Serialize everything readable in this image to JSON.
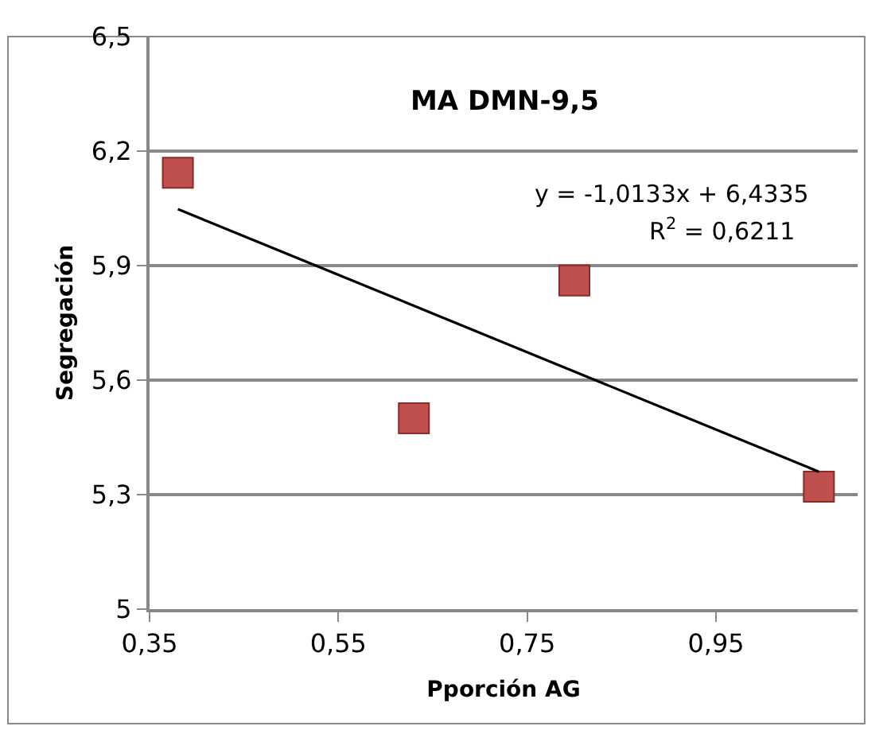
{
  "chart_data": {
    "type": "scatter",
    "title": "MA DMN-9,5",
    "xlabel": "Pporción AG",
    "ylabel": "Segregación",
    "x": [
      0.38,
      0.63,
      0.8,
      1.059
    ],
    "series": [
      {
        "color": "#c0504d",
        "values": [
          6.143,
          5.5,
          5.861,
          5.321
        ],
        "marker": "square"
      },
      {
        "type": "line",
        "color": "#000000",
        "x": [
          0.38,
          1.059
        ],
        "values": [
          6.048,
          5.36
        ],
        "line_style": "solid",
        "marker": "none"
      }
    ],
    "annotations": [
      "y = -1,0133x + 6,4335",
      "R$^{2}$ = 0,6211"
    ],
    "xlim": [
      0.35,
      1.1
    ],
    "xticks": [
      {
        "value": 0.35,
        "label": "0,35"
      },
      {
        "value": 0.55,
        "label": "0,55"
      },
      {
        "value": 0.75,
        "label": "0,75"
      },
      {
        "value": 0.95,
        "label": "0,95"
      }
    ],
    "ylim": [
      5,
      6.5
    ],
    "yticks": [
      5,
      {
        "value": 5.3,
        "label": "5,3"
      },
      {
        "value": 5.6,
        "label": "5,6"
      },
      {
        "value": 5.9,
        "label": "5,9"
      },
      {
        "value": 6.2,
        "label": "6,2"
      },
      {
        "value": 6.5,
        "label": "6,5"
      }
    ],
    "grid": "y"
  }
}
